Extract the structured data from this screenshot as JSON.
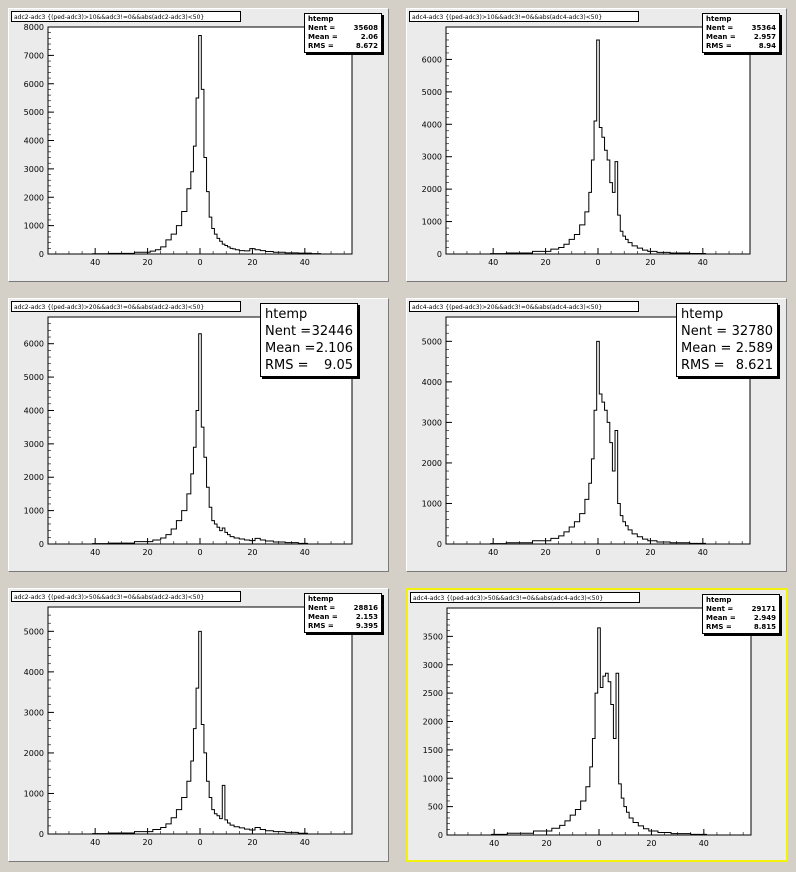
{
  "pads": [
    {
      "title": "adc2-adc3 {(ped-adc3)>10&&adc3!=0&&abs(adc2-adc3)<50}",
      "stats": {
        "name": "htemp",
        "nent_label": "Nent = ",
        "nent": "35608",
        "mean_label": "Mean = ",
        "mean": "2.06",
        "rms_label": "RMS = ",
        "rms": "8.672",
        "size": "small"
      },
      "selected": false
    },
    {
      "title": "adc4-adc3 {(ped-adc3)>10&&adc3!=0&&abs(adc4-adc3)<50}",
      "stats": {
        "name": "htemp",
        "nent_label": "Nent = ",
        "nent": "35364",
        "mean_label": "Mean = ",
        "mean": "2.957",
        "rms_label": "RMS = ",
        "rms": "8.94",
        "size": "small"
      },
      "selected": false
    },
    {
      "title": "adc2-adc3 {(ped-adc3)>20&&adc3!=0&&abs(adc2-adc3)<50}",
      "stats": {
        "name": "htemp",
        "nent_label": "Nent = ",
        "nent": "32446",
        "mean_label": "Mean = ",
        "mean": "2.106",
        "rms_label": "RMS = ",
        "rms": "9.05",
        "size": "big"
      },
      "selected": false
    },
    {
      "title": "adc4-adc3 {(ped-adc3)>20&&adc3!=0&&abs(adc4-adc3)<50}",
      "stats": {
        "name": "htemp",
        "nent_label": "Nent = ",
        "nent": "32780",
        "mean_label": "Mean = ",
        "mean": "2.589",
        "rms_label": "RMS = ",
        "rms": "8.621",
        "size": "big"
      },
      "selected": false
    },
    {
      "title": "adc2-adc3 {(ped-adc3)>50&&adc3!=0&&abs(adc2-adc3)<50}",
      "stats": {
        "name": "htemp",
        "nent_label": "Nent = ",
        "nent": "28816",
        "mean_label": "Mean = ",
        "mean": "2.153",
        "rms_label": "RMS = ",
        "rms": "9.395",
        "size": "small"
      },
      "selected": false
    },
    {
      "title": "adc4-adc3 {(ped-adc3)>50&&adc3!=0&&abs(adc4-adc3)<50}",
      "stats": {
        "name": "htemp",
        "nent_label": "Nent = ",
        "nent": "29171",
        "mean_label": "Mean = ",
        "mean": "2.949",
        "rms_label": "RMS = ",
        "rms": "8.815",
        "size": "small"
      },
      "selected": true
    }
  ],
  "chart_data": [
    {
      "type": "bar",
      "x_range": [
        -58,
        58
      ],
      "ylim": [
        0,
        8000
      ],
      "y_ticks": [
        0,
        1000,
        2000,
        3000,
        4000,
        5000,
        6000,
        7000,
        8000
      ],
      "x_tick_labels": [
        "40",
        "20",
        "0",
        "20",
        "40"
      ],
      "x_tick_values": [
        -40,
        -20,
        0,
        20,
        40
      ],
      "bins_x": [
        -40,
        -30,
        -20,
        -18,
        -16,
        -14,
        -12,
        -10,
        -8,
        -6,
        -4,
        -3,
        -2,
        -1,
        0,
        1,
        2,
        3,
        4,
        5,
        6,
        7,
        8,
        9,
        10,
        11,
        12,
        13,
        14,
        16,
        18,
        20,
        22,
        24,
        26,
        30,
        35,
        40,
        45
      ],
      "bins_y": [
        10,
        20,
        60,
        100,
        150,
        250,
        500,
        700,
        1000,
        1500,
        2300,
        2900,
        3800,
        5500,
        7700,
        5800,
        3400,
        2200,
        1300,
        900,
        700,
        550,
        450,
        350,
        300,
        250,
        200,
        180,
        150,
        120,
        110,
        190,
        150,
        120,
        90,
        60,
        40,
        30,
        15
      ]
    },
    {
      "type": "bar",
      "x_range": [
        -58,
        58
      ],
      "ylim": [
        0,
        7000
      ],
      "y_ticks": [
        0,
        1000,
        2000,
        3000,
        4000,
        5000,
        6000
      ],
      "x_tick_labels": [
        "40",
        "20",
        "0",
        "20",
        "40"
      ],
      "x_tick_values": [
        -40,
        -20,
        0,
        20,
        40
      ],
      "bins_x": [
        -40,
        -30,
        -20,
        -16,
        -14,
        -12,
        -10,
        -8,
        -6,
        -4,
        -3,
        -2,
        -1,
        0,
        1,
        2,
        3,
        4,
        5,
        6,
        7,
        8,
        9,
        10,
        11,
        12,
        14,
        16,
        18,
        20,
        25,
        30,
        40
      ],
      "bins_y": [
        10,
        30,
        80,
        150,
        200,
        300,
        450,
        600,
        900,
        1300,
        1900,
        2900,
        4100,
        6600,
        3900,
        3600,
        3200,
        2900,
        2200,
        1900,
        2850,
        1200,
        700,
        550,
        450,
        350,
        250,
        180,
        120,
        80,
        50,
        30,
        15
      ]
    },
    {
      "type": "bar",
      "x_range": [
        -58,
        58
      ],
      "ylim": [
        0,
        6800
      ],
      "y_ticks": [
        0,
        1000,
        2000,
        3000,
        4000,
        5000,
        6000
      ],
      "x_tick_labels": [
        "40",
        "20",
        "0",
        "20",
        "40"
      ],
      "x_tick_values": [
        -40,
        -20,
        0,
        20,
        40
      ],
      "bins_x": [
        -40,
        -30,
        -20,
        -16,
        -14,
        -12,
        -10,
        -8,
        -6,
        -4,
        -3,
        -2,
        -1,
        0,
        1,
        2,
        3,
        4,
        5,
        6,
        7,
        8,
        9,
        10,
        11,
        12,
        14,
        16,
        18,
        20,
        22,
        24,
        26,
        30,
        35,
        40
      ],
      "bins_y": [
        10,
        25,
        70,
        120,
        180,
        280,
        450,
        700,
        1000,
        1500,
        2100,
        2900,
        4000,
        6300,
        3500,
        2600,
        1700,
        1100,
        700,
        600,
        500,
        400,
        480,
        350,
        280,
        220,
        180,
        150,
        120,
        100,
        170,
        120,
        90,
        60,
        40,
        20
      ]
    },
    {
      "type": "bar",
      "x_range": [
        -58,
        58
      ],
      "ylim": [
        0,
        5600
      ],
      "y_ticks": [
        0,
        1000,
        2000,
        3000,
        4000,
        5000
      ],
      "x_tick_labels": [
        "40",
        "20",
        "0",
        "20",
        "40"
      ],
      "x_tick_values": [
        -40,
        -20,
        0,
        20,
        40
      ],
      "bins_x": [
        -40,
        -30,
        -20,
        -16,
        -14,
        -12,
        -10,
        -8,
        -6,
        -4,
        -3,
        -2,
        -1,
        0,
        1,
        2,
        3,
        4,
        5,
        6,
        7,
        8,
        9,
        10,
        11,
        12,
        14,
        16,
        18,
        20,
        25,
        30,
        40
      ],
      "bins_y": [
        10,
        30,
        80,
        140,
        200,
        300,
        420,
        550,
        750,
        1100,
        1500,
        2100,
        3300,
        5000,
        3700,
        3500,
        3300,
        3000,
        2500,
        1800,
        2800,
        1000,
        700,
        550,
        450,
        350,
        250,
        180,
        120,
        80,
        50,
        30,
        15
      ]
    },
    {
      "type": "bar",
      "x_range": [
        -58,
        58
      ],
      "ylim": [
        0,
        5600
      ],
      "y_ticks": [
        0,
        1000,
        2000,
        3000,
        4000,
        5000
      ],
      "x_tick_labels": [
        "40",
        "20",
        "0",
        "20",
        "40"
      ],
      "x_tick_values": [
        -40,
        -20,
        0,
        20,
        40
      ],
      "bins_x": [
        -40,
        -30,
        -20,
        -16,
        -14,
        -12,
        -10,
        -8,
        -6,
        -4,
        -3,
        -2,
        -1,
        0,
        1,
        2,
        3,
        4,
        5,
        6,
        7,
        8,
        9,
        10,
        11,
        12,
        14,
        16,
        18,
        20,
        22,
        24,
        26,
        30,
        35,
        40
      ],
      "bins_y": [
        10,
        25,
        60,
        110,
        160,
        250,
        400,
        600,
        900,
        1300,
        1800,
        2600,
        3600,
        5000,
        2700,
        2000,
        1300,
        900,
        600,
        500,
        450,
        380,
        1200,
        350,
        270,
        220,
        180,
        150,
        120,
        100,
        160,
        110,
        80,
        60,
        40,
        20
      ]
    },
    {
      "type": "bar",
      "x_range": [
        -58,
        58
      ],
      "ylim": [
        0,
        4000
      ],
      "y_ticks": [
        0,
        500,
        1000,
        1500,
        2000,
        2500,
        3000,
        3500
      ],
      "x_tick_labels": [
        "40",
        "20",
        "0",
        "20",
        "40"
      ],
      "x_tick_values": [
        -40,
        -20,
        0,
        20,
        40
      ],
      "bins_x": [
        -40,
        -30,
        -20,
        -16,
        -14,
        -12,
        -10,
        -8,
        -6,
        -4,
        -3,
        -2,
        -1,
        0,
        1,
        2,
        3,
        4,
        5,
        6,
        7,
        8,
        9,
        10,
        11,
        12,
        14,
        16,
        18,
        20,
        25,
        30,
        40
      ],
      "bins_y": [
        10,
        30,
        70,
        120,
        170,
        250,
        350,
        450,
        600,
        850,
        1200,
        1700,
        2500,
        3650,
        2600,
        2800,
        2850,
        2700,
        2300,
        1700,
        2850,
        900,
        650,
        500,
        400,
        300,
        220,
        160,
        110,
        70,
        45,
        25,
        12
      ]
    }
  ]
}
